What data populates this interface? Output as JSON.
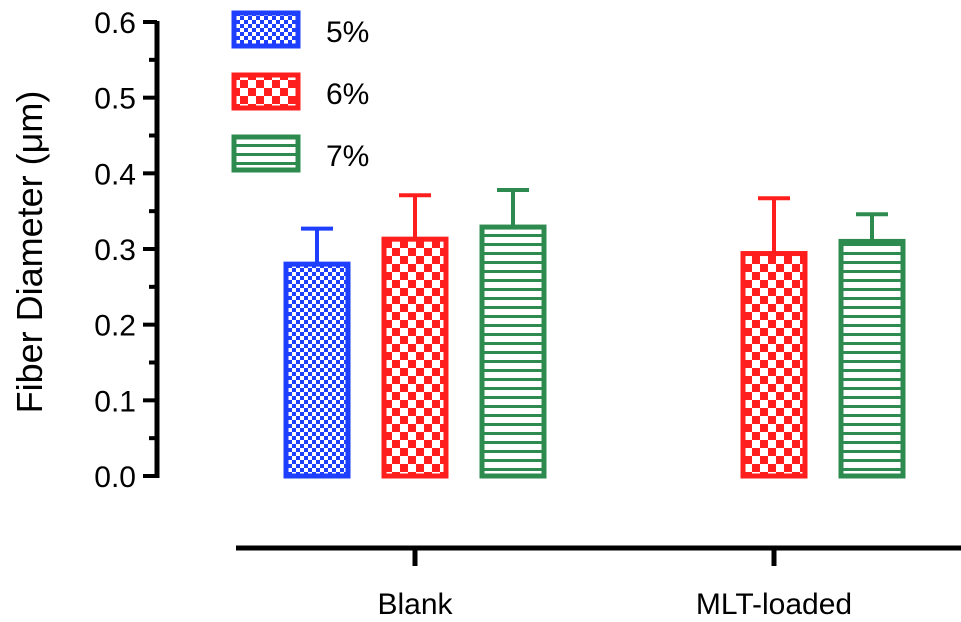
{
  "chart_data": {
    "type": "bar",
    "ylabel": "Fiber Diameter (μm)",
    "xlabel": "",
    "ylim": [
      0,
      0.6
    ],
    "yticks": [
      "0.0",
      "0.1",
      "0.2",
      "0.3",
      "0.4",
      "0.5",
      "0.6"
    ],
    "categories": [
      "Blank",
      "MLT-loaded"
    ],
    "legend_position": "top-left",
    "grid": false,
    "series": [
      {
        "name": "5%",
        "color": "#1f3fff",
        "pattern": "fine-checker",
        "values": [
          0.28,
          null
        ],
        "errors": [
          0.047,
          null
        ]
      },
      {
        "name": "6%",
        "color": "#ff1e1e",
        "pattern": "checker",
        "values": [
          0.313,
          0.294
        ],
        "errors": [
          0.058,
          0.073
        ]
      },
      {
        "name": "7%",
        "color": "#2e8b4f",
        "pattern": "horizontal-stripes",
        "values": [
          0.329,
          0.31
        ],
        "errors": [
          0.049,
          0.036
        ]
      }
    ]
  }
}
